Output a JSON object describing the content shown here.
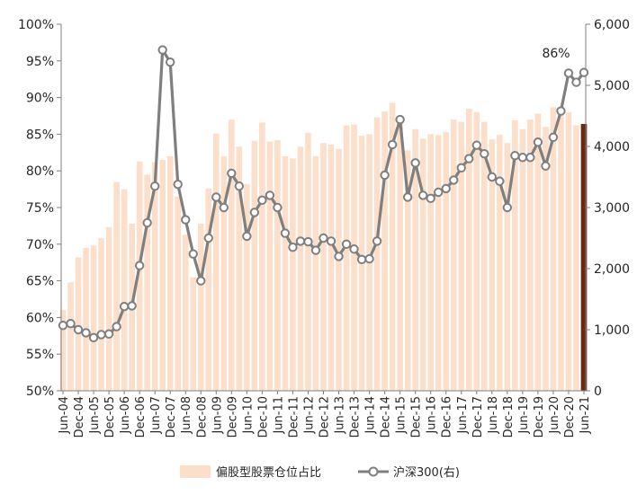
{
  "colors": {
    "bar": "#fbdfca",
    "bar_highlight": "#6b2810",
    "line": "#7f7f7f",
    "axis": "#7f7f7f",
    "text": "#262626"
  },
  "chart_data": {
    "type": "bar",
    "secondary_type": "line",
    "left_axis": {
      "ticks": [
        "50%",
        "55%",
        "60%",
        "65%",
        "70%",
        "75%",
        "80%",
        "85%",
        "90%",
        "95%",
        "100%"
      ],
      "ylim": [
        50,
        100
      ]
    },
    "right_axis": {
      "ticks": [
        "0",
        "1,000",
        "2,000",
        "3,000",
        "4,000",
        "5,000",
        "6,000"
      ],
      "ylim": [
        0,
        6000
      ]
    },
    "x_tick_labels": [
      "Jun-04",
      "Dec-04",
      "Jun-05",
      "Dec-05",
      "Jun-06",
      "Dec-06",
      "Jun-07",
      "Dec-07",
      "Jun-08",
      "Dec-08",
      "Jun-09",
      "Dec-09",
      "Jun-10",
      "Dec-10",
      "Jun-11",
      "Dec-11",
      "Jun-12",
      "Dec-12",
      "Jun-13",
      "Dec-13",
      "Jun-14",
      "Dec-14",
      "Jun-15",
      "Dec-15",
      "Jun-16",
      "Dec-16",
      "Jun-17",
      "Dec-17",
      "Jun-18",
      "Dec-18",
      "Jun-19",
      "Dec-19",
      "Jun-20",
      "Dec-20",
      "Jun-21"
    ],
    "bars": {
      "name": "偏股型股票仓位占比",
      "values": [
        61,
        64.8,
        68.2,
        69.5,
        69.8,
        70.8,
        72.3,
        78.5,
        77.5,
        72.8,
        81.3,
        79.5,
        81.2,
        81.5,
        82,
        76.5,
        71.3,
        65.5,
        72.8,
        77.6,
        85.1,
        82,
        87,
        83.3,
        78.2,
        84.1,
        86.6,
        84,
        84.2,
        82,
        81.7,
        83.3,
        85.2,
        82,
        83.8,
        83.6,
        83,
        86.2,
        86.3,
        84.8,
        85,
        87.3,
        88.1,
        89.3,
        87.1,
        82.8,
        85.7,
        84.4,
        85,
        84.9,
        85.3,
        87,
        86.7,
        88.5,
        88,
        86.7,
        84.3,
        84.9,
        83.8,
        86.9,
        85.7,
        87,
        87.8,
        86,
        88.7,
        88.5,
        88,
        86.2,
        86.4
      ],
      "highlight_value": 86.4
    },
    "line": {
      "name": "沪深300(右)",
      "values": [
        1070,
        1100,
        1000,
        950,
        870,
        920,
        930,
        1050,
        1380,
        1390,
        2050,
        2750,
        3350,
        5580,
        5380,
        3380,
        2800,
        2240,
        1800,
        2500,
        3170,
        3000,
        3560,
        3350,
        2530,
        2920,
        3120,
        3200,
        3000,
        2580,
        2350,
        2450,
        2440,
        2300,
        2500,
        2450,
        2200,
        2400,
        2320,
        2150,
        2160,
        2450,
        3530,
        4030,
        4440,
        3170,
        3730,
        3200,
        3150,
        3250,
        3310,
        3450,
        3650,
        3800,
        4020,
        3880,
        3500,
        3430,
        3000,
        3850,
        3820,
        3820,
        4070,
        3680,
        4150,
        4580,
        5200,
        5050,
        5210
      ]
    },
    "annotation": "86%",
    "legend": {
      "position": "bottom-center",
      "items": [
        "偏股型股票仓位占比",
        "沪深300(右)"
      ]
    }
  }
}
